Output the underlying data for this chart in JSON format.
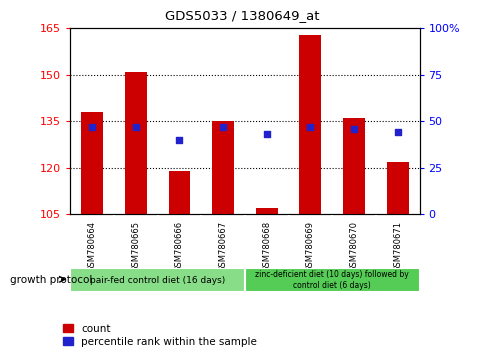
{
  "title": "GDS5033 / 1380649_at",
  "categories": [
    "GSM780664",
    "GSM780665",
    "GSM780666",
    "GSM780667",
    "GSM780668",
    "GSM780669",
    "GSM780670",
    "GSM780671"
  ],
  "counts": [
    138,
    151,
    119,
    135,
    107,
    163,
    136,
    122
  ],
  "percentiles": [
    47,
    47,
    40,
    47,
    43,
    47,
    46,
    44
  ],
  "ylim_left": [
    105,
    165
  ],
  "ylim_right": [
    0,
    100
  ],
  "yticks_left": [
    105,
    120,
    135,
    150,
    165
  ],
  "yticks_right": [
    0,
    25,
    50,
    75,
    100
  ],
  "ytick_labels_right": [
    "0",
    "25",
    "50",
    "75",
    "100%"
  ],
  "bar_color": "#cc0000",
  "dot_color": "#2222cc",
  "bg_plot": "#ffffff",
  "group1_label": "pair-fed control diet (16 days)",
  "group2_label": "zinc-deficient diet (10 days) followed by\ncontrol diet (6 days)",
  "group1_color": "#88dd88",
  "group2_color": "#55cc55",
  "tick_label_box_color": "#cccccc",
  "protocol_label": "growth protocol",
  "legend_count_label": "count",
  "legend_pct_label": "percentile rank within the sample",
  "bar_width": 0.5,
  "base_value": 105
}
